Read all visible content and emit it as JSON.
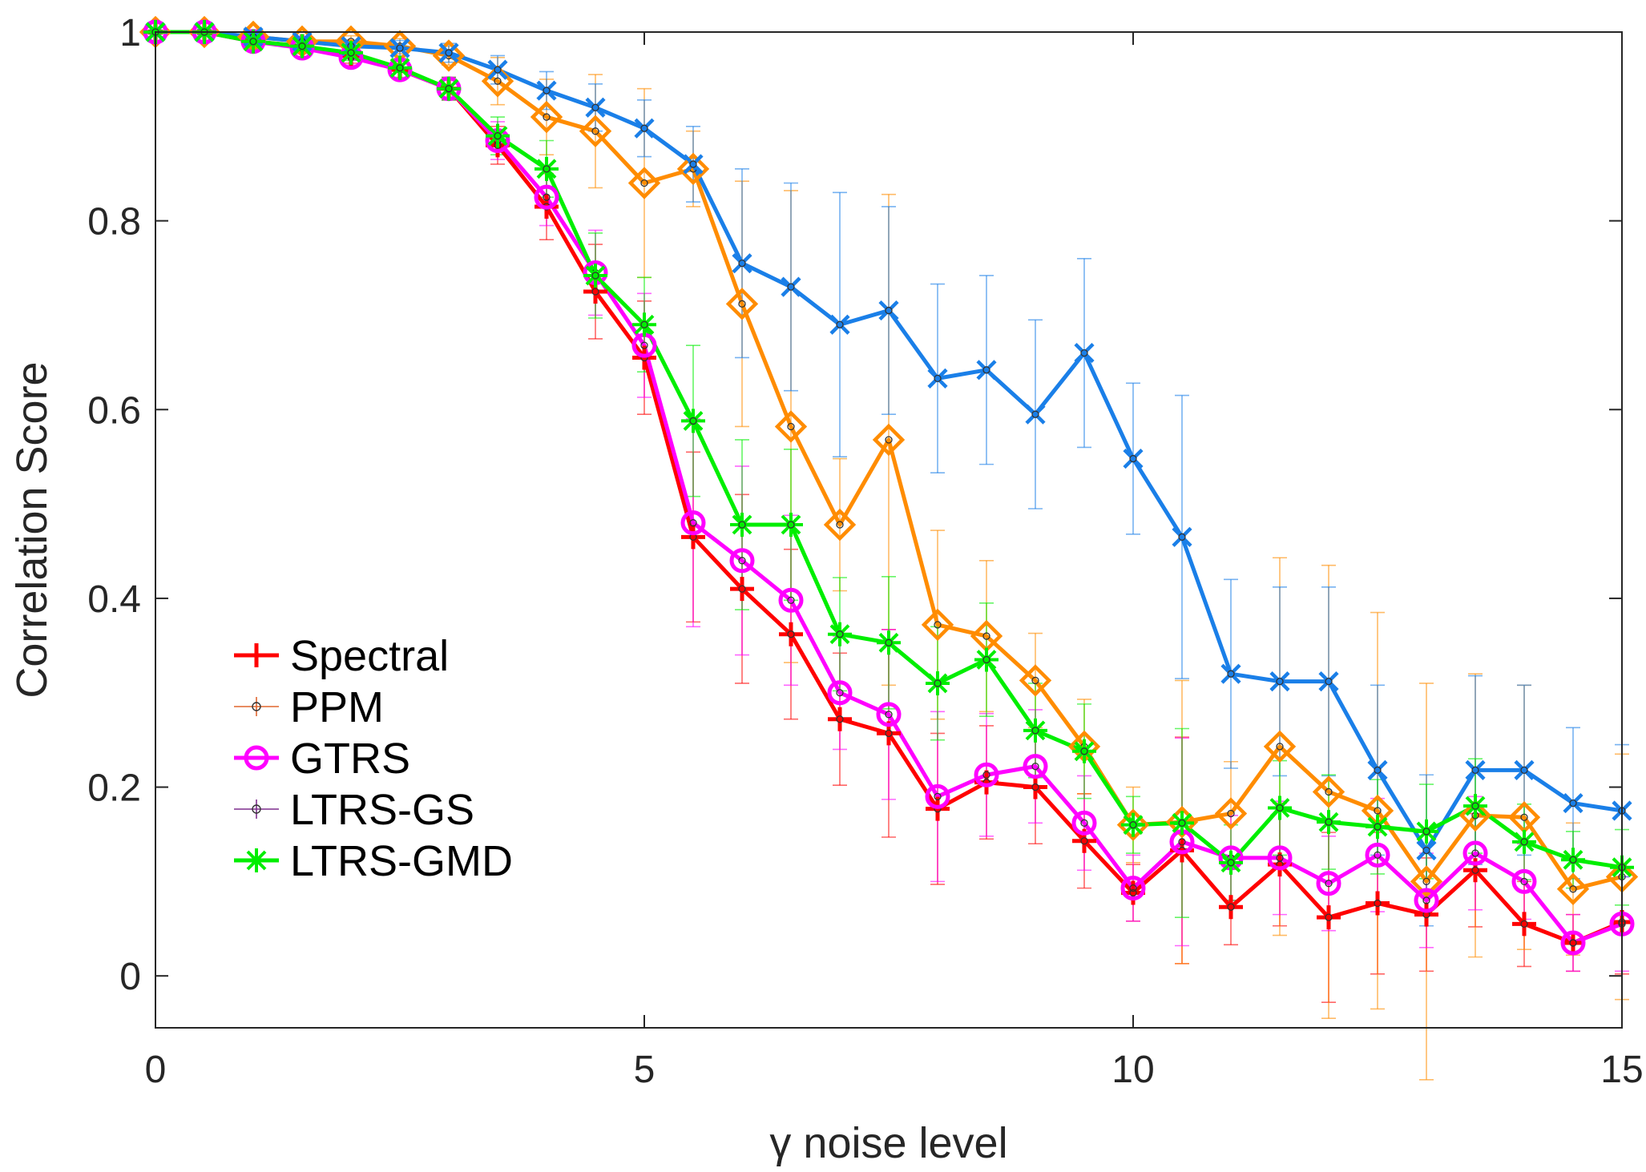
{
  "chart_data": {
    "type": "line",
    "title": "",
    "xlabel": "γ noise level",
    "ylabel": "Correlation Score",
    "xlim": [
      0,
      15
    ],
    "ylim": [
      -0.055,
      1.0
    ],
    "xticks": [
      "0",
      "5",
      "10",
      "15"
    ],
    "yticks": [
      "0",
      "0.2",
      "0.4",
      "0.6",
      "0.8",
      "1"
    ],
    "grid": false,
    "legend_position": "bottom-left",
    "x": [
      0,
      0.5,
      1,
      1.5,
      2,
      2.5,
      3,
      3.5,
      4,
      4.5,
      5,
      5.5,
      6,
      6.5,
      7,
      7.5,
      8,
      8.5,
      9,
      9.5,
      10,
      10.5,
      11,
      11.5,
      12,
      12.5,
      13,
      13.5,
      14,
      14.5,
      15
    ],
    "series": [
      {
        "name": "Spectral",
        "color": "#ff0000",
        "marker": "plus",
        "values": [
          1.0,
          1.0,
          0.99,
          0.985,
          0.975,
          0.96,
          0.94,
          0.88,
          0.815,
          0.725,
          0.655,
          0.465,
          0.41,
          0.362,
          0.272,
          0.257,
          0.177,
          0.205,
          0.2,
          0.143,
          0.088,
          0.133,
          0.073,
          0.118,
          0.062,
          0.077,
          0.065,
          0.112,
          0.055,
          0.035,
          0.057
        ],
        "err": [
          0.002,
          0.002,
          0.004,
          0.006,
          0.008,
          0.01,
          0.012,
          0.02,
          0.035,
          0.05,
          0.06,
          0.09,
          0.1,
          0.09,
          0.07,
          0.11,
          0.08,
          0.06,
          0.06,
          0.05,
          0.03,
          0.12,
          0.04,
          0.065,
          0.09,
          0.075,
          0.06,
          0.06,
          0.045,
          0.03,
          0.055
        ]
      },
      {
        "name": "PPM",
        "color": "#ff8c00",
        "marker": "diamond",
        "values": [
          1.0,
          1.0,
          0.995,
          0.99,
          0.99,
          0.985,
          0.975,
          0.948,
          0.91,
          0.895,
          0.84,
          0.855,
          0.712,
          0.582,
          0.478,
          0.568,
          0.372,
          0.36,
          0.313,
          0.243,
          0.16,
          0.163,
          0.172,
          0.243,
          0.195,
          0.175,
          0.1,
          0.17,
          0.168,
          0.092,
          0.105
        ],
        "err": [
          0.002,
          0.003,
          0.004,
          0.005,
          0.006,
          0.008,
          0.01,
          0.025,
          0.04,
          0.06,
          0.1,
          0.04,
          0.13,
          0.25,
          0.07,
          0.26,
          0.1,
          0.08,
          0.05,
          0.05,
          0.04,
          0.15,
          0.055,
          0.2,
          0.24,
          0.21,
          0.21,
          0.15,
          0.14,
          0.07,
          0.13
        ]
      },
      {
        "name": "GTRS",
        "color": "#ff00ff",
        "marker": "circle",
        "values": [
          1.0,
          1.0,
          0.99,
          0.983,
          0.973,
          0.96,
          0.94,
          0.885,
          0.825,
          0.745,
          0.668,
          0.48,
          0.44,
          0.398,
          0.3,
          0.277,
          0.19,
          0.213,
          0.222,
          0.162,
          0.093,
          0.142,
          0.125,
          0.125,
          0.098,
          0.128,
          0.08,
          0.13,
          0.1,
          0.035,
          0.055
        ],
        "err": [
          0.002,
          0.002,
          0.004,
          0.006,
          0.008,
          0.01,
          0.012,
          0.02,
          0.03,
          0.045,
          0.055,
          0.11,
          0.1,
          0.09,
          0.06,
          0.09,
          0.09,
          0.065,
          0.06,
          0.05,
          0.035,
          0.11,
          0.045,
          0.06,
          0.05,
          0.06,
          0.05,
          0.06,
          0.04,
          0.03,
          0.05
        ]
      },
      {
        "name": "LTRS-GS",
        "color": "#1a7fe8",
        "marker": "x",
        "values": [
          1.0,
          1.0,
          0.995,
          0.99,
          0.985,
          0.983,
          0.978,
          0.96,
          0.938,
          0.92,
          0.898,
          0.86,
          0.755,
          0.73,
          0.69,
          0.705,
          0.633,
          0.642,
          0.595,
          0.66,
          0.548,
          0.465,
          0.32,
          0.312,
          0.312,
          0.218,
          0.133,
          0.218,
          0.218,
          0.183,
          0.175
        ],
        "err": [
          0.002,
          0.003,
          0.004,
          0.005,
          0.006,
          0.008,
          0.01,
          0.015,
          0.02,
          0.025,
          0.03,
          0.04,
          0.1,
          0.11,
          0.14,
          0.11,
          0.1,
          0.1,
          0.1,
          0.1,
          0.08,
          0.15,
          0.1,
          0.1,
          0.1,
          0.09,
          0.08,
          0.1,
          0.09,
          0.08,
          0.07
        ]
      },
      {
        "name": "LTRS-GMD",
        "color": "#00ee00",
        "marker": "asterisk",
        "values": [
          1.0,
          1.0,
          0.99,
          0.985,
          0.978,
          0.962,
          0.94,
          0.89,
          0.855,
          0.742,
          0.69,
          0.588,
          0.478,
          0.478,
          0.362,
          0.353,
          0.31,
          0.335,
          0.26,
          0.238,
          0.16,
          0.162,
          0.12,
          0.178,
          0.163,
          0.158,
          0.153,
          0.18,
          0.142,
          0.123,
          0.115
        ],
        "err": [
          0.002,
          0.002,
          0.004,
          0.006,
          0.008,
          0.01,
          0.012,
          0.02,
          0.03,
          0.045,
          0.05,
          0.08,
          0.09,
          0.08,
          0.06,
          0.07,
          0.06,
          0.06,
          0.05,
          0.05,
          0.03,
          0.1,
          0.04,
          0.05,
          0.05,
          0.05,
          0.05,
          0.05,
          0.04,
          0.03,
          0.04
        ]
      }
    ]
  }
}
